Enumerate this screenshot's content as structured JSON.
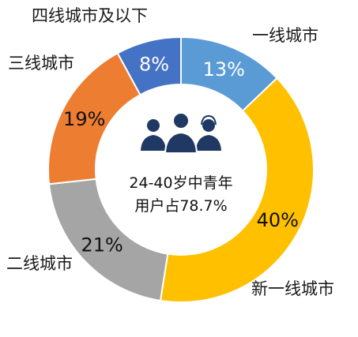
{
  "chart_data": {
    "type": "pie",
    "hole": true,
    "slices": [
      {
        "label": "一线城市",
        "value": 13,
        "value_label": "13%",
        "color": "#5B9BD5"
      },
      {
        "label": "新一线城市",
        "value": 40,
        "value_label": "40%",
        "color": "#FFC000"
      },
      {
        "label": "二线城市",
        "value": 21,
        "value_label": "21%",
        "color": "#A5A5A5"
      },
      {
        "label": "三线城市",
        "value": 19,
        "value_label": "19%",
        "color": "#ED7D31"
      },
      {
        "label": "四线城市及以下",
        "value": 8,
        "value_label": "8%",
        "color": "#4472C4"
      }
    ],
    "center_text": [
      "24-40岁中青年",
      "用户占78.7%"
    ],
    "center_icon": "people-group-icon"
  }
}
